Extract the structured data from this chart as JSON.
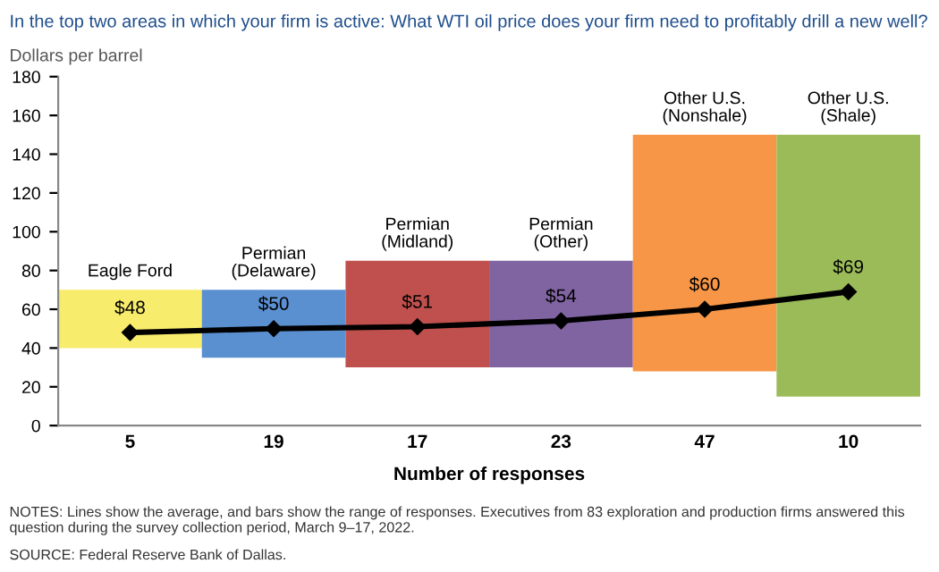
{
  "chart_data": {
    "type": "bar",
    "title": "In the top two areas in which your firm is active: What WTI oil price does your firm need to profitably drill a new well?",
    "ylabel": "Dollars per barrel",
    "xlabel": "Number of responses",
    "categories": [
      "5",
      "19",
      "17",
      "23",
      "47",
      "10"
    ],
    "series": [
      {
        "base": [
          40,
          35,
          30,
          30,
          28,
          15
        ],
        "values": [
          30,
          35,
          55,
          55,
          122,
          135
        ],
        "colors": [
          "#f7ec6b",
          "#5a8fd0",
          "#c0504d",
          "#8064a2",
          "#f79646",
          "#9bbb59"
        ]
      },
      {
        "type": "line",
        "color": "#000000",
        "marker": "diamond",
        "line_style": "solid",
        "values": [
          48,
          50,
          51,
          54,
          60,
          69
        ],
        "value_labels": [
          "$48",
          "$50",
          "$51",
          "$54",
          "$60",
          "$69"
        ]
      }
    ],
    "ylim": [
      0,
      180
    ],
    "yticks": [
      0,
      20,
      40,
      60,
      80,
      100,
      120,
      140,
      160,
      180
    ],
    "grid": false,
    "legend": false,
    "annotations": [
      {
        "text": "Eagle Ford",
        "x": "5",
        "y": 70
      },
      {
        "text": "Permian\n(Delaware)",
        "x": "19",
        "y": 70
      },
      {
        "text": "Permian\n(Midland)",
        "x": "17",
        "y": 85
      },
      {
        "text": "Permian\n(Other)",
        "x": "23",
        "y": 85
      },
      {
        "text": "Other U.S.\n(Nonshale)",
        "x": "47",
        "y": 150
      },
      {
        "text": "Other U.S.\n(Shale)",
        "x": "10",
        "y": 150
      },
      "NOTES: Lines show the average, and bars show the range of responses. Executives from 83 exploration and production firms answered this question during the survey collection period, March 9–17, 2022.",
      "SOURCE: Federal Reserve Bank of Dallas."
    ]
  }
}
